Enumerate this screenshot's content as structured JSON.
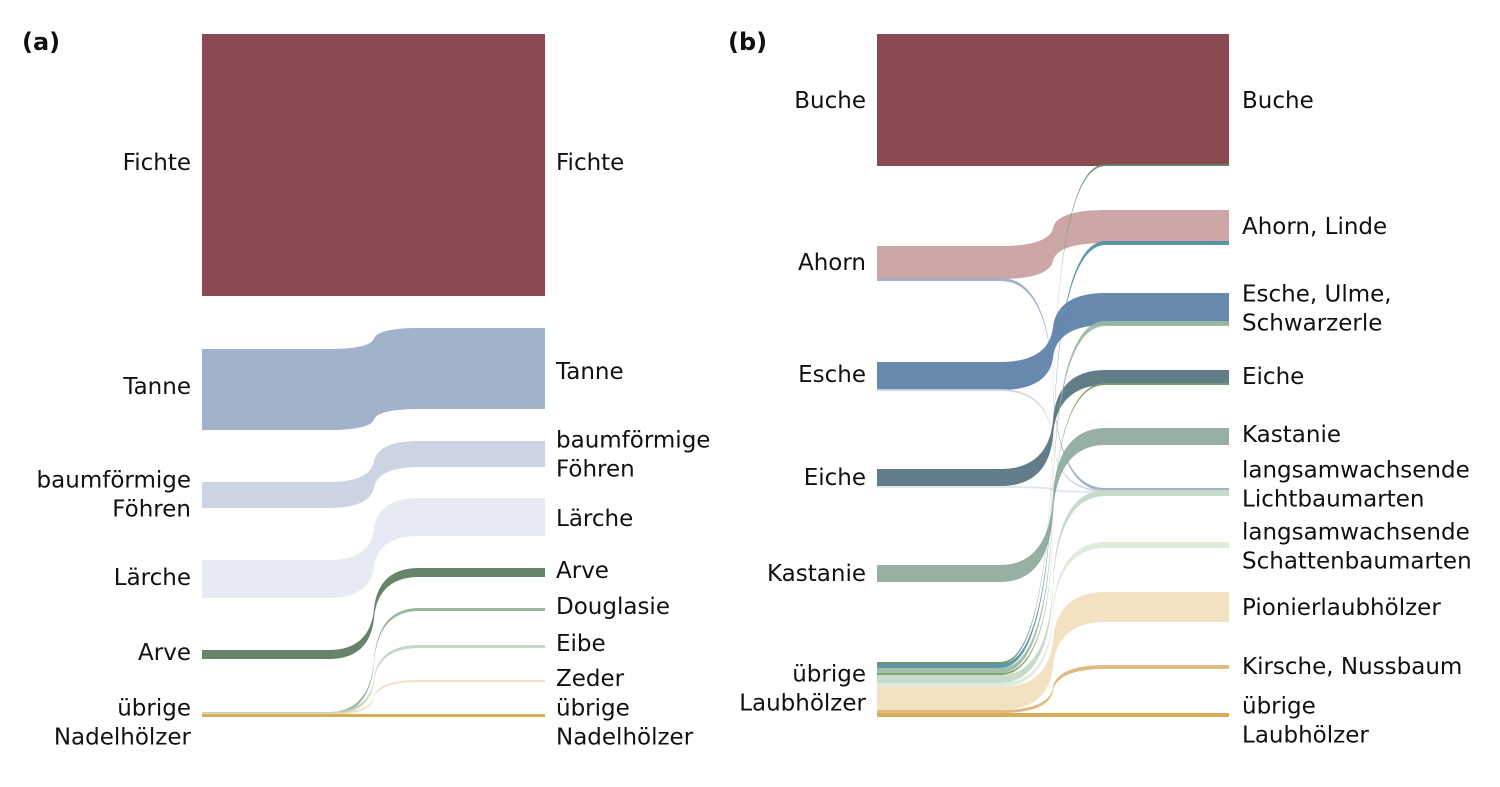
{
  "panels": [
    {
      "id": "a",
      "label": "(a)",
      "left_nodes": [
        {
          "id": "fichte",
          "lines": [
            "Fichte"
          ]
        },
        {
          "id": "tanne",
          "lines": [
            "Tanne"
          ]
        },
        {
          "id": "foehren",
          "lines": [
            "baumförmige",
            "Föhren"
          ]
        },
        {
          "id": "laerche",
          "lines": [
            "Lärche"
          ]
        },
        {
          "id": "arve",
          "lines": [
            "Arve"
          ]
        },
        {
          "id": "uebrige",
          "lines": [
            "übrige",
            "Nadelhölzer"
          ]
        }
      ],
      "right_nodes": [
        {
          "id": "fichte",
          "lines": [
            "Fichte"
          ]
        },
        {
          "id": "tanne",
          "lines": [
            "Tanne"
          ]
        },
        {
          "id": "foehren",
          "lines": [
            "baumförmige",
            "Föhren"
          ]
        },
        {
          "id": "laerche",
          "lines": [
            "Lärche"
          ]
        },
        {
          "id": "arve",
          "lines": [
            "Arve"
          ]
        },
        {
          "id": "douglasie",
          "lines": [
            "Douglasie"
          ]
        },
        {
          "id": "eibe",
          "lines": [
            "Eibe"
          ]
        },
        {
          "id": "zeder",
          "lines": [
            "Zeder"
          ]
        },
        {
          "id": "uebrige",
          "lines": [
            "übrige",
            "Nadelhölzer"
          ]
        }
      ],
      "flows": [
        {
          "from": "fichte",
          "to": "fichte",
          "color": "#8b4a51"
        },
        {
          "from": "tanne",
          "to": "tanne",
          "color": "#9aabc7"
        },
        {
          "from": "foehren",
          "to": "foehren",
          "color": "#c8cfe0"
        },
        {
          "from": "laerche",
          "to": "laerche",
          "color": "#e3e8f3"
        },
        {
          "from": "arve",
          "to": "arve",
          "color": "#5a7a5e"
        },
        {
          "from": "uebrige",
          "to": "douglasie",
          "color": "#8faf96"
        },
        {
          "from": "uebrige",
          "to": "eibe",
          "color": "#c0d3c2"
        },
        {
          "from": "uebrige",
          "to": "zeder",
          "color": "#f2dcb8"
        },
        {
          "from": "uebrige",
          "to": "uebrige",
          "color": "#d4a64a"
        }
      ]
    },
    {
      "id": "b",
      "label": "(b)",
      "left_nodes": [
        {
          "id": "buche",
          "lines": [
            "Buche"
          ]
        },
        {
          "id": "ahorn",
          "lines": [
            "Ahorn"
          ]
        },
        {
          "id": "esche",
          "lines": [
            "Esche"
          ]
        },
        {
          "id": "eiche",
          "lines": [
            "Eiche"
          ]
        },
        {
          "id": "kastanie",
          "lines": [
            "Kastanie"
          ]
        },
        {
          "id": "uebrige",
          "lines": [
            "übrige",
            "Laubhölzer"
          ]
        }
      ],
      "right_nodes": [
        {
          "id": "buche",
          "lines": [
            "Buche"
          ]
        },
        {
          "id": "ahorn_linde",
          "lines": [
            "Ahorn, Linde"
          ]
        },
        {
          "id": "esche_ulme",
          "lines": [
            "Esche, Ulme,",
            "Schwarzerle"
          ]
        },
        {
          "id": "eiche",
          "lines": [
            "Eiche"
          ]
        },
        {
          "id": "kastanie",
          "lines": [
            "Kastanie"
          ]
        },
        {
          "id": "licht",
          "lines": [
            "langsamwachsende",
            "Lichtbaumarten"
          ]
        },
        {
          "id": "schatten",
          "lines": [
            "langsamwachsende",
            "Schattenbaumarten"
          ]
        },
        {
          "id": "pionier",
          "lines": [
            "Pionierlaubhölzer"
          ]
        },
        {
          "id": "kirsche",
          "lines": [
            "Kirsche, Nussbaum"
          ]
        },
        {
          "id": "uebrige",
          "lines": [
            "übrige",
            "Laubhölzer"
          ]
        }
      ],
      "flows": [
        {
          "from": "buche",
          "to": "buche",
          "color": "#8b4a51"
        },
        {
          "from": "ahorn",
          "to": "ahorn_linde",
          "color": "#c99f9e"
        },
        {
          "from": "ahorn",
          "to": "licht",
          "color": "#9aabc7"
        },
        {
          "from": "esche",
          "to": "esche_ulme",
          "color": "#5a7fa6"
        },
        {
          "from": "esche",
          "to": "licht",
          "color": "#ccd5e6"
        },
        {
          "from": "eiche",
          "to": "eiche",
          "color": "#55727e"
        },
        {
          "from": "eiche",
          "to": "licht",
          "color": "#dfe6f0"
        },
        {
          "from": "kastanie",
          "to": "kastanie",
          "color": "#8fa89c"
        },
        {
          "from": "uebrige",
          "to": "buche",
          "color": "#5e8a66"
        },
        {
          "from": "uebrige",
          "to": "ahorn_linde",
          "color": "#4e8ea3"
        },
        {
          "from": "uebrige",
          "to": "esche_ulme",
          "color": "#9ab7a1"
        },
        {
          "from": "uebrige",
          "to": "eiche",
          "color": "#77a063"
        },
        {
          "from": "uebrige",
          "to": "licht",
          "color": "#c3d7c5"
        },
        {
          "from": "uebrige",
          "to": "schatten",
          "color": "#dde9da"
        },
        {
          "from": "uebrige",
          "to": "pionier",
          "color": "#f1dfbd"
        },
        {
          "from": "uebrige",
          "to": "kirsche",
          "color": "#ddb576"
        },
        {
          "from": "uebrige",
          "to": "uebrige",
          "color": "#d4a64a"
        }
      ]
    }
  ]
}
